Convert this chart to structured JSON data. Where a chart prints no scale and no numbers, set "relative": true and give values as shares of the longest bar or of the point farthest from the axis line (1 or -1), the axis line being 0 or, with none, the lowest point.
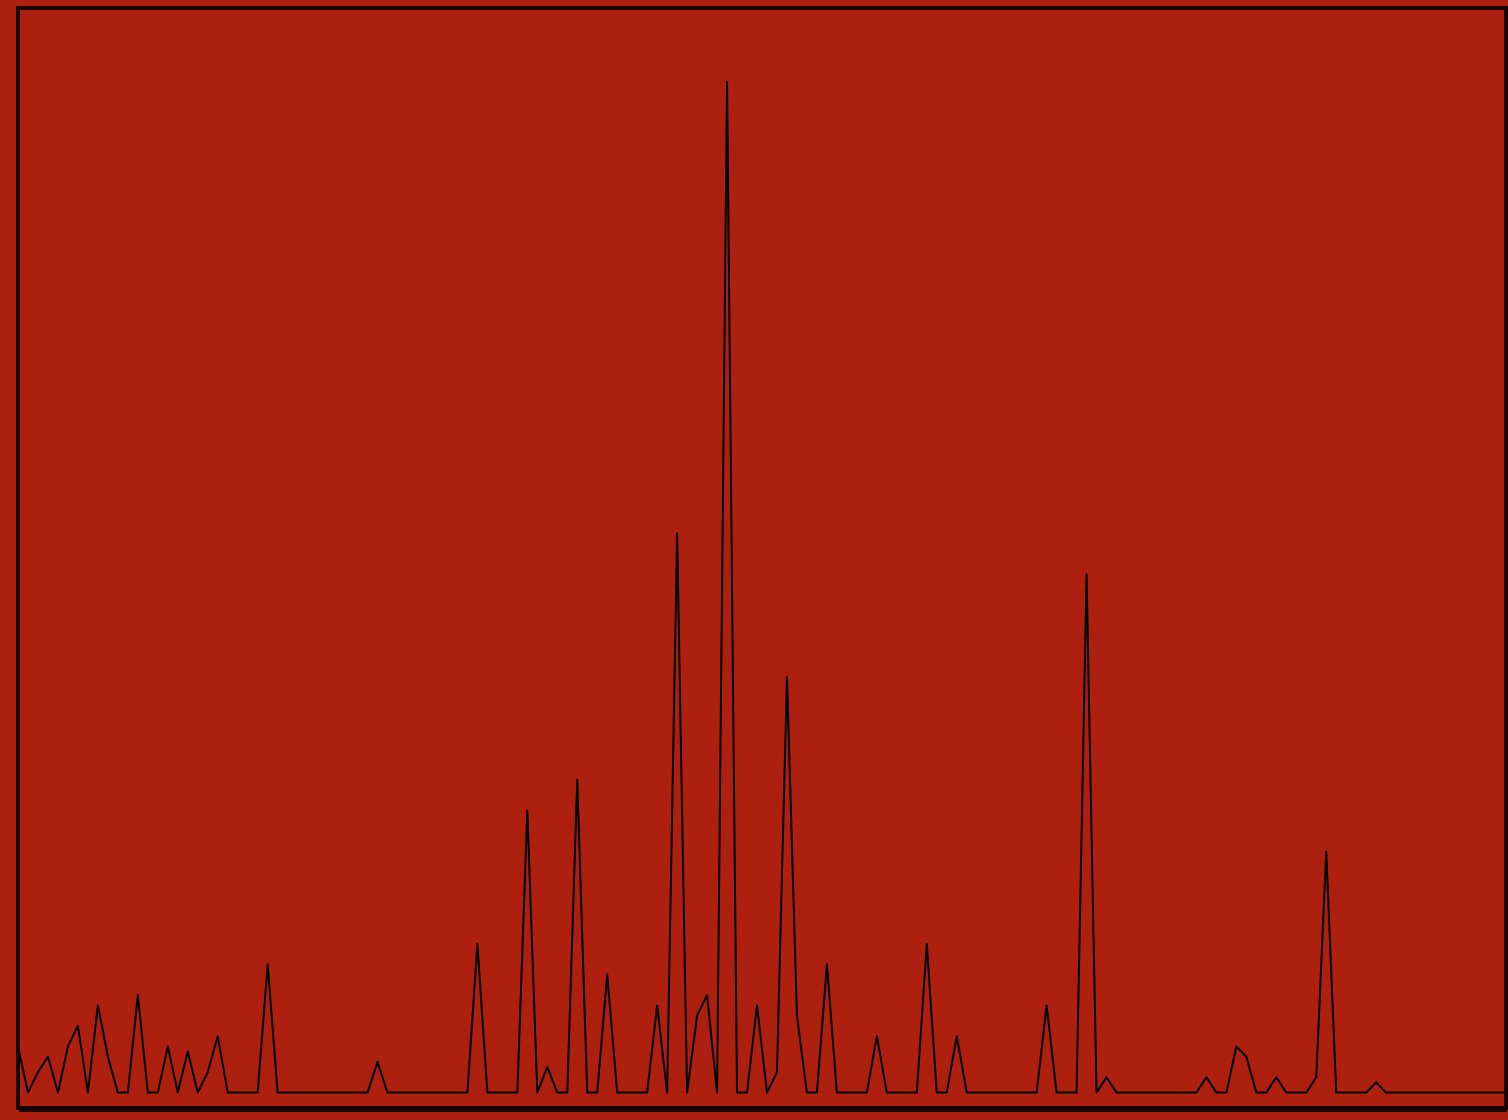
{
  "chart_data": {
    "type": "line",
    "relative": true,
    "grid": false,
    "marker": "none",
    "line_style": "solid",
    "categories": [
      null,
      null,
      null,
      null,
      null,
      null,
      null,
      null,
      null,
      null,
      null,
      null,
      null,
      null,
      null,
      null,
      null,
      null,
      null,
      null,
      null,
      null,
      null,
      null,
      null,
      null,
      null,
      null,
      null,
      null,
      null,
      null,
      null,
      null,
      null,
      null,
      null,
      null,
      null,
      null,
      null,
      null,
      null,
      null,
      null,
      null,
      null,
      null,
      null,
      null,
      null,
      null,
      null,
      null,
      null,
      null,
      null,
      null,
      null,
      null,
      null,
      null,
      null,
      null,
      null,
      null,
      null,
      null,
      null,
      null,
      null,
      null,
      null,
      null,
      null,
      null,
      null,
      null,
      null,
      null,
      null,
      null,
      null,
      null,
      null,
      null,
      null,
      null,
      null,
      null,
      null,
      null,
      null,
      null,
      null,
      null,
      null,
      null,
      null,
      null,
      null,
      null,
      null,
      null,
      null,
      null,
      null,
      null,
      null,
      null,
      null,
      null,
      null,
      null,
      null,
      null,
      null,
      null,
      null,
      null,
      null,
      null,
      null,
      null,
      null,
      null,
      null,
      null,
      null,
      null,
      null,
      null,
      null,
      null,
      null,
      null,
      null,
      null,
      null,
      null,
      null,
      null,
      null,
      null,
      null,
      null,
      null,
      null,
      null,
      null
    ],
    "series": [
      {
        "color": "#000000",
        "values": [
          0.06,
          0.015,
          0.035,
          0.05,
          0.015,
          0.06,
          0.08,
          0.015,
          0.1,
          0.05,
          0.015,
          0.015,
          0.11,
          0.015,
          0.015,
          0.06,
          0.015,
          0.055,
          0.015,
          0.035,
          0.07,
          0.015,
          0.015,
          0.015,
          0.015,
          0.14,
          0.015,
          0.015,
          0.015,
          0.015,
          0.015,
          0.015,
          0.015,
          0.015,
          0.015,
          0.015,
          0.045,
          0.015,
          0.015,
          0.015,
          0.015,
          0.015,
          0.015,
          0.015,
          0.015,
          0.015,
          0.16,
          0.015,
          0.015,
          0.015,
          0.015,
          0.29,
          0.015,
          0.04,
          0.015,
          0.015,
          0.32,
          0.015,
          0.015,
          0.13,
          0.015,
          0.015,
          0.015,
          0.015,
          0.1,
          0.015,
          0.56,
          0.015,
          0.09,
          0.11,
          0.015,
          1,
          0.015,
          0.015,
          0.1,
          0.015,
          0.035,
          0.42,
          0.09,
          0.015,
          0.015,
          0.14,
          0.015,
          0.015,
          0.015,
          0.015,
          0.07,
          0.015,
          0.015,
          0.015,
          0.015,
          0.16,
          0.015,
          0.015,
          0.07,
          0.015,
          0.015,
          0.015,
          0.015,
          0.015,
          0.015,
          0.015,
          0.015,
          0.1,
          0.015,
          0.015,
          0.015,
          0.52,
          0.015,
          0.03,
          0.015,
          0.015,
          0.015,
          0.015,
          0.015,
          0.015,
          0.015,
          0.015,
          0.015,
          0.03,
          0.015,
          0.015,
          0.06,
          0.05,
          0.015,
          0.015,
          0.03,
          0.015,
          0.015,
          0.015,
          0.03,
          0.25,
          0.015,
          0.015,
          0.015,
          0.015,
          0.025,
          0.015,
          0.015,
          0.015,
          0.015,
          0.015,
          0.015,
          0.015,
          0.015,
          0.015,
          0.015,
          0.015,
          0.015,
          0.015
        ]
      }
    ]
  }
}
